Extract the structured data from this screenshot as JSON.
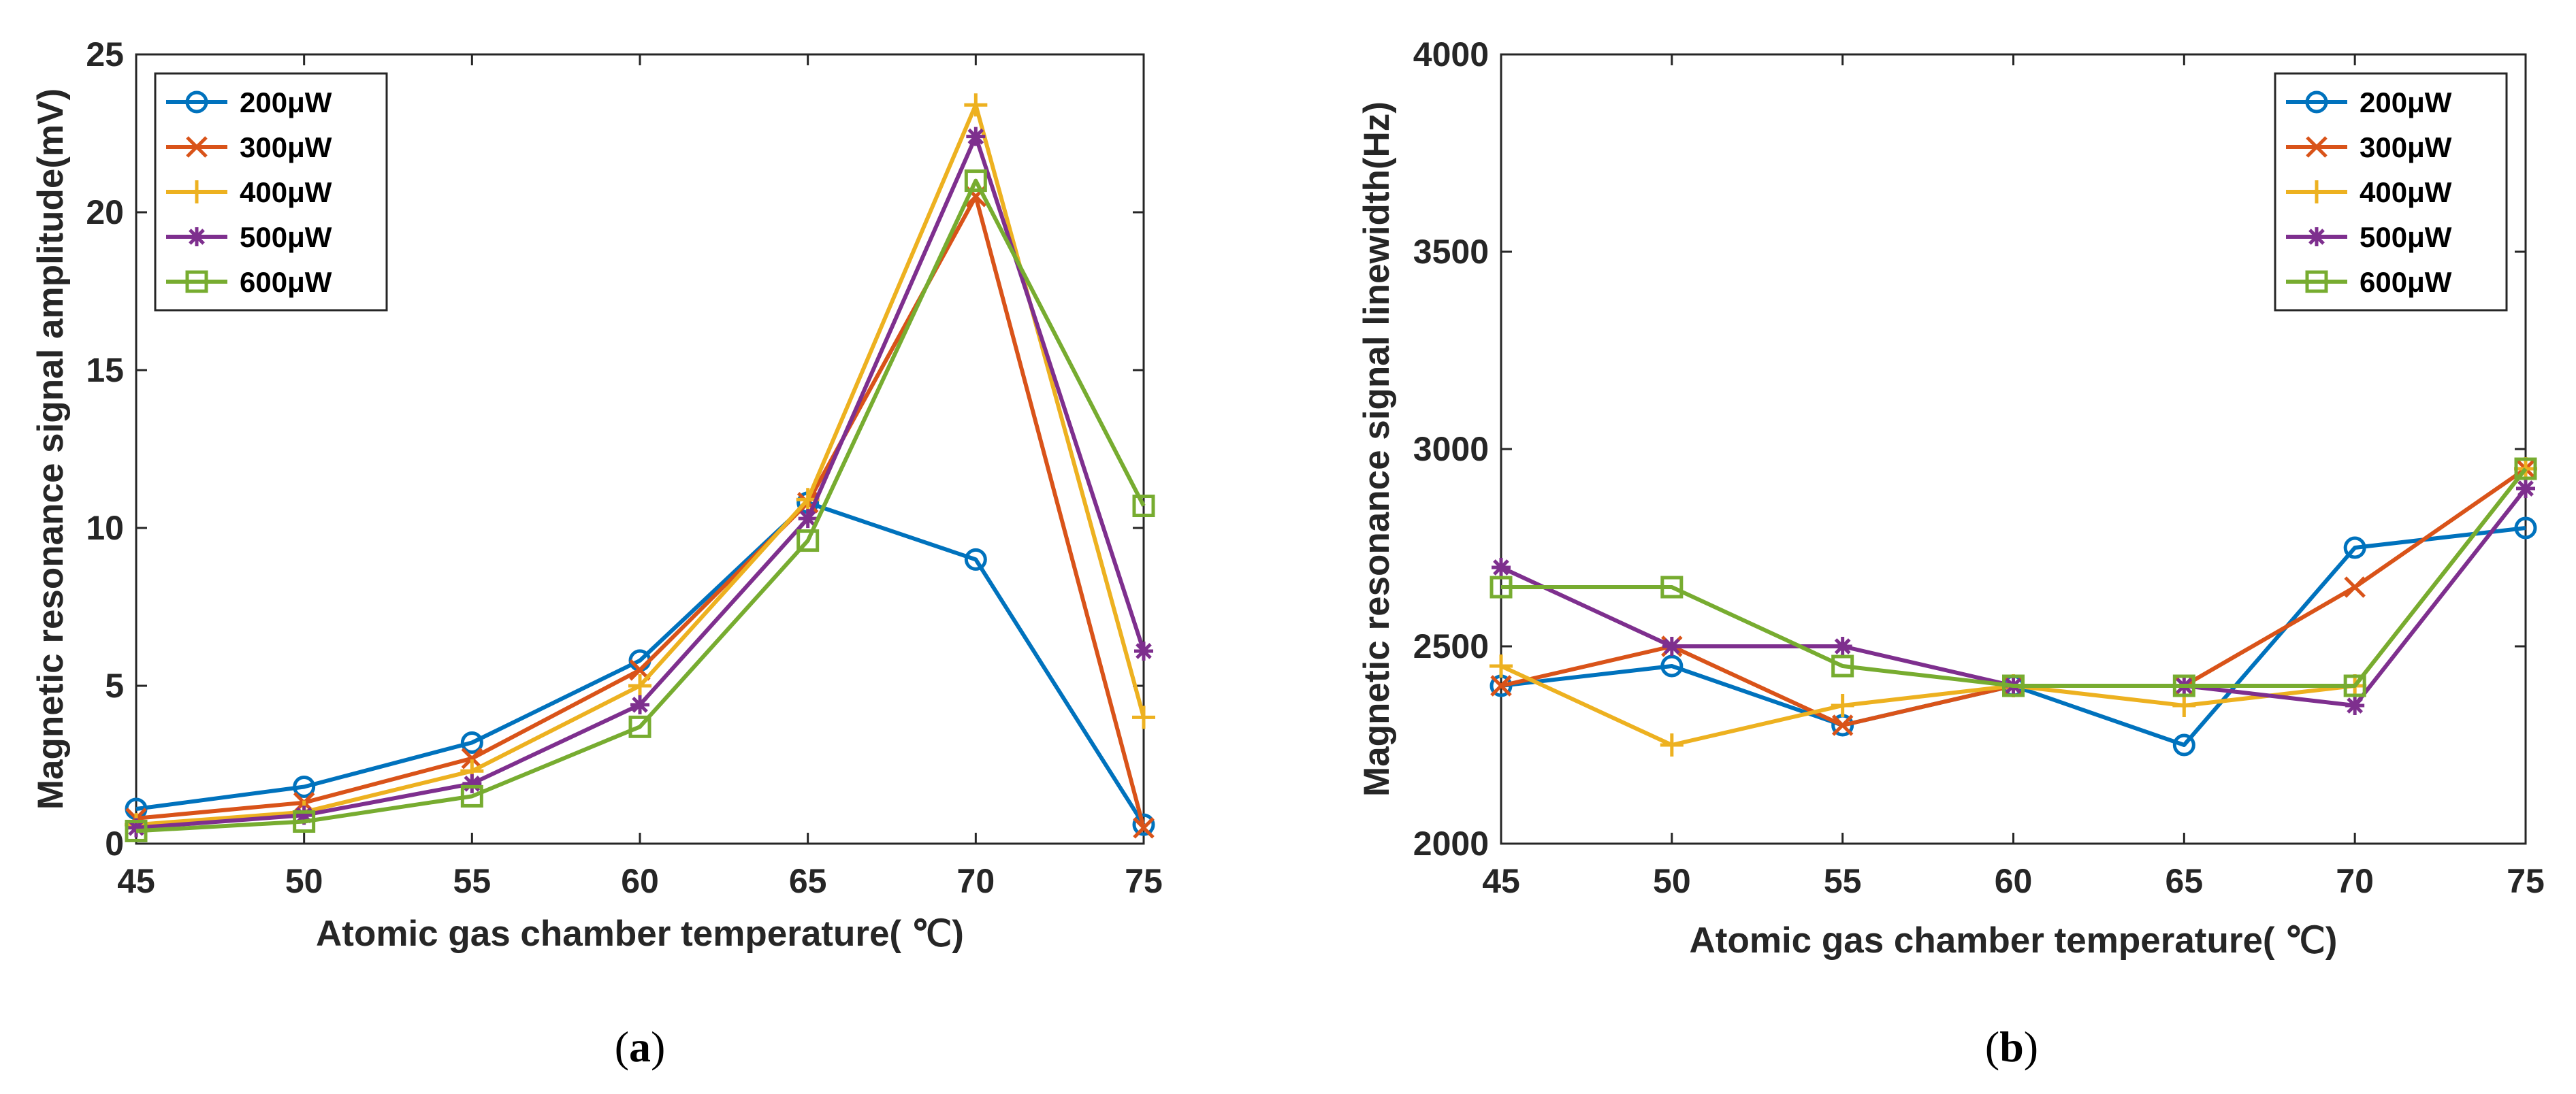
{
  "colors": {
    "s200": "#0072BD",
    "s300": "#D95319",
    "s400": "#EDB120",
    "s500": "#7E2F8E",
    "s600": "#77AC30",
    "axis": "#262626"
  },
  "chart_data": [
    {
      "type": "line",
      "panel": "a",
      "caption_open": "(",
      "caption_letter": "a",
      "caption_close": ")",
      "xlabel": "Atomic gas chamber temperature( ℃)",
      "ylabel": "Magnetic resonance signal amplitude(mV)",
      "xlim": [
        45,
        75
      ],
      "ylim": [
        0,
        25
      ],
      "xticks": [
        45,
        50,
        55,
        60,
        65,
        70,
        75
      ],
      "yticks": [
        0,
        5,
        10,
        15,
        20,
        25
      ],
      "legend_position": "top-left",
      "x": [
        45,
        50,
        55,
        60,
        65,
        70,
        75
      ],
      "series": [
        {
          "name": "200μW",
          "marker": "circle",
          "color_key": "s200",
          "values": [
            1.1,
            1.8,
            3.2,
            5.8,
            10.8,
            9.0,
            0.6
          ]
        },
        {
          "name": "300μW",
          "marker": "x",
          "color_key": "s300",
          "values": [
            0.8,
            1.3,
            2.7,
            5.5,
            10.8,
            20.5,
            0.5
          ]
        },
        {
          "name": "400μW",
          "marker": "plus",
          "color_key": "s400",
          "values": [
            0.6,
            1.0,
            2.3,
            5.0,
            10.9,
            23.4,
            4.0
          ]
        },
        {
          "name": "500μW",
          "marker": "star",
          "color_key": "s500",
          "values": [
            0.5,
            0.9,
            1.9,
            4.4,
            10.3,
            22.4,
            6.1
          ]
        },
        {
          "name": "600μW",
          "marker": "square",
          "color_key": "s600",
          "values": [
            0.4,
            0.7,
            1.5,
            3.7,
            9.6,
            21.0,
            10.7
          ]
        }
      ]
    },
    {
      "type": "line",
      "panel": "b",
      "caption_open": "(",
      "caption_letter": "b",
      "caption_close": ")",
      "xlabel": "Atomic gas chamber temperature( ℃)",
      "ylabel": "Magnetic resonance signal linewidth(Hz)",
      "xlim": [
        45,
        75
      ],
      "ylim": [
        2000,
        4000
      ],
      "xticks": [
        45,
        50,
        55,
        60,
        65,
        70,
        75
      ],
      "yticks": [
        2000,
        2500,
        3000,
        3500,
        4000
      ],
      "legend_position": "top-right",
      "x": [
        45,
        50,
        55,
        60,
        65,
        70,
        75
      ],
      "series": [
        {
          "name": "200μW",
          "marker": "circle",
          "color_key": "s200",
          "values": [
            2400,
            2450,
            2300,
            2400,
            2250,
            2750,
            2800
          ]
        },
        {
          "name": "300μW",
          "marker": "x",
          "color_key": "s300",
          "values": [
            2400,
            2500,
            2300,
            2400,
            2400,
            2650,
            2950
          ]
        },
        {
          "name": "400μW",
          "marker": "plus",
          "color_key": "s400",
          "values": [
            2450,
            2250,
            2350,
            2400,
            2350,
            2400,
            2950
          ]
        },
        {
          "name": "500μW",
          "marker": "star",
          "color_key": "s500",
          "values": [
            2700,
            2500,
            2500,
            2400,
            2400,
            2350,
            2900
          ]
        },
        {
          "name": "600μW",
          "marker": "square",
          "color_key": "s600",
          "values": [
            2650,
            2650,
            2450,
            2400,
            2400,
            2400,
            2950
          ]
        }
      ]
    }
  ]
}
